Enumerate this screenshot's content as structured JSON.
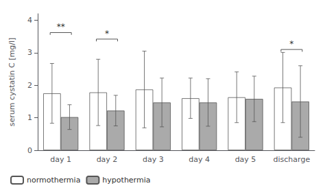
{
  "chart_data": {
    "type": "bar",
    "ylabel": "serum cystatin C [mg/l]",
    "categories": [
      "day 1",
      "day 2",
      "day 3",
      "day 4",
      "day 5",
      "discharge"
    ],
    "series": [
      {
        "name": "normothermia",
        "color": "#ffffff",
        "values": [
          1.75,
          1.78,
          1.87,
          1.6,
          1.63,
          1.93
        ],
        "errors": [
          0.92,
          1.02,
          1.18,
          0.62,
          0.78,
          1.08
        ]
      },
      {
        "name": "hypothermia",
        "color": "#aaaaaa",
        "values": [
          1.02,
          1.22,
          1.47,
          1.47,
          1.58,
          1.5
        ],
        "errors": [
          0.38,
          0.47,
          0.75,
          0.73,
          0.7,
          1.1
        ]
      }
    ],
    "annotations": [
      {
        "text": "**",
        "category": "day 1",
        "y": 3.62
      },
      {
        "text": "*",
        "category": "day 2",
        "y": 3.42
      },
      {
        "text": "*",
        "category": "discharge",
        "y": 3.1
      }
    ],
    "ylim": [
      0,
      4.2
    ],
    "yticks": [
      0,
      1,
      2,
      3,
      4
    ],
    "grid": false,
    "legend": "lower left"
  }
}
